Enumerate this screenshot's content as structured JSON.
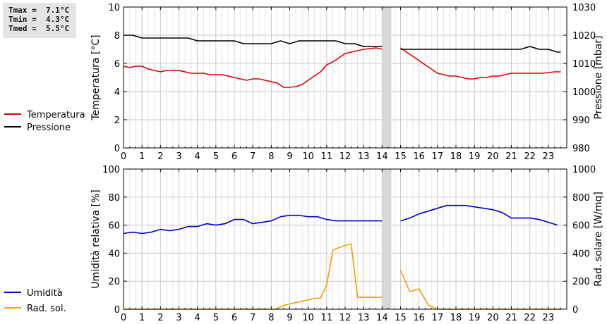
{
  "stats": {
    "tmax": "Tmax =  7.1°C",
    "tmin": "Tmin =  4.3°C",
    "tmed": "Tmed =  5.5°C"
  },
  "chart_data": [
    {
      "type": "line",
      "x_ticks": [
        "0",
        "1",
        "2",
        "3",
        "4",
        "5",
        "6",
        "7",
        "8",
        "9",
        "10",
        "11",
        "12",
        "13",
        "14",
        "15",
        "16",
        "17",
        "18",
        "19",
        "20",
        "21",
        "22",
        "23"
      ],
      "ylabel_left": "Temperatura [°C]",
      "ylabel_right": "Pressione [mbar]",
      "ylim_left": [
        0,
        10
      ],
      "ylim_right": [
        980,
        1030
      ],
      "yticks_left": [
        "0",
        "2",
        "4",
        "6",
        "8",
        "10"
      ],
      "yticks_right": [
        "980",
        "990",
        "1000",
        "1010",
        "1020",
        "1030"
      ],
      "xlim": [
        0,
        24
      ],
      "gap": [
        14.0,
        14.5
      ],
      "grid": true,
      "legend_position": "left",
      "series": [
        {
          "name": "Temperatura",
          "color": "#dd0000",
          "axis": "left",
          "segments": [
            [
              [
                0,
                5.8
              ],
              [
                0.33,
                5.7
              ],
              [
                0.67,
                5.8
              ],
              [
                1,
                5.8
              ],
              [
                1.33,
                5.6
              ],
              [
                1.67,
                5.5
              ],
              [
                2,
                5.4
              ],
              [
                2.33,
                5.5
              ],
              [
                2.67,
                5.5
              ],
              [
                3,
                5.5
              ],
              [
                3.33,
                5.4
              ],
              [
                3.67,
                5.3
              ],
              [
                4,
                5.3
              ],
              [
                4.33,
                5.3
              ],
              [
                4.67,
                5.2
              ],
              [
                5,
                5.2
              ],
              [
                5.33,
                5.2
              ],
              [
                5.67,
                5.1
              ],
              [
                6,
                5.0
              ],
              [
                6.33,
                4.9
              ],
              [
                6.67,
                4.8
              ],
              [
                7,
                4.9
              ],
              [
                7.33,
                4.9
              ],
              [
                7.67,
                4.8
              ],
              [
                8,
                4.7
              ],
              [
                8.33,
                4.6
              ],
              [
                8.67,
                4.3
              ],
              [
                9,
                4.3
              ],
              [
                9.33,
                4.35
              ],
              [
                9.67,
                4.5
              ],
              [
                10,
                4.8
              ],
              [
                10.33,
                5.1
              ],
              [
                10.67,
                5.4
              ],
              [
                11,
                5.9
              ],
              [
                11.33,
                6.1
              ],
              [
                11.67,
                6.4
              ],
              [
                12,
                6.7
              ],
              [
                12.33,
                6.8
              ],
              [
                12.67,
                6.9
              ],
              [
                13,
                7.0
              ],
              [
                13.33,
                7.05
              ],
              [
                13.67,
                7.1
              ],
              [
                14,
                7.0
              ]
            ],
            [
              [
                15,
                7.1
              ],
              [
                15.33,
                6.8
              ],
              [
                15.67,
                6.5
              ],
              [
                16,
                6.2
              ],
              [
                16.33,
                5.9
              ],
              [
                16.67,
                5.6
              ],
              [
                17,
                5.3
              ],
              [
                17.33,
                5.2
              ],
              [
                17.67,
                5.1
              ],
              [
                18,
                5.1
              ],
              [
                18.33,
                5.0
              ],
              [
                18.67,
                4.9
              ],
              [
                19,
                4.9
              ],
              [
                19.33,
                5.0
              ],
              [
                19.67,
                5.0
              ],
              [
                20,
                5.1
              ],
              [
                20.33,
                5.1
              ],
              [
                20.67,
                5.2
              ],
              [
                21,
                5.3
              ],
              [
                21.33,
                5.3
              ],
              [
                21.67,
                5.3
              ],
              [
                22,
                5.3
              ],
              [
                22.33,
                5.3
              ],
              [
                22.67,
                5.3
              ],
              [
                23,
                5.35
              ],
              [
                23.33,
                5.4
              ],
              [
                23.67,
                5.4
              ]
            ]
          ]
        },
        {
          "name": "Pressione",
          "color": "#000000",
          "axis": "right",
          "segments": [
            [
              [
                0,
                1020
              ],
              [
                0.5,
                1020
              ],
              [
                1,
                1019
              ],
              [
                1.5,
                1019
              ],
              [
                2,
                1019
              ],
              [
                2.5,
                1019
              ],
              [
                3,
                1019
              ],
              [
                3.5,
                1019
              ],
              [
                4,
                1018
              ],
              [
                4.5,
                1018
              ],
              [
                5,
                1018
              ],
              [
                5.5,
                1018
              ],
              [
                6,
                1018
              ],
              [
                6.5,
                1017
              ],
              [
                7,
                1017
              ],
              [
                7.5,
                1017
              ],
              [
                8,
                1017
              ],
              [
                8.5,
                1018
              ],
              [
                9,
                1017
              ],
              [
                9.5,
                1018
              ],
              [
                10,
                1018
              ],
              [
                10.5,
                1018
              ],
              [
                11,
                1018
              ],
              [
                11.5,
                1018
              ],
              [
                12,
                1017
              ],
              [
                12.5,
                1017
              ],
              [
                13,
                1016
              ],
              [
                13.5,
                1016
              ],
              [
                14,
                1016
              ]
            ],
            [
              [
                15,
                1015
              ],
              [
                15.5,
                1015
              ],
              [
                16,
                1015
              ],
              [
                16.5,
                1015
              ],
              [
                17,
                1015
              ],
              [
                17.5,
                1015
              ],
              [
                18,
                1015
              ],
              [
                18.5,
                1015
              ],
              [
                19,
                1015
              ],
              [
                19.5,
                1015
              ],
              [
                20,
                1015
              ],
              [
                20.5,
                1015
              ],
              [
                21,
                1015
              ],
              [
                21.5,
                1015
              ],
              [
                22,
                1016
              ],
              [
                22.5,
                1015
              ],
              [
                23,
                1015
              ],
              [
                23.5,
                1014
              ],
              [
                23.67,
                1014
              ]
            ]
          ]
        }
      ]
    },
    {
      "type": "line",
      "x_ticks": [
        "0",
        "1",
        "2",
        "3",
        "4",
        "5",
        "6",
        "7",
        "8",
        "9",
        "10",
        "11",
        "12",
        "13",
        "14",
        "15",
        "16",
        "17",
        "18",
        "19",
        "20",
        "21",
        "22",
        "23"
      ],
      "ylabel_left": "Umidità relativa [%]",
      "ylabel_right": "Rad. solare [W/mq]",
      "ylim_left": [
        0,
        100
      ],
      "ylim_right": [
        0,
        1000
      ],
      "yticks_left": [
        "0",
        "20",
        "40",
        "60",
        "80",
        "100"
      ],
      "yticks_right": [
        "0",
        "200",
        "400",
        "600",
        "800",
        "1000"
      ],
      "xlim": [
        0,
        24
      ],
      "gap": [
        14.0,
        14.5
      ],
      "grid": true,
      "legend_position": "left",
      "series": [
        {
          "name": "Umidità",
          "color": "#0000cc",
          "axis": "left",
          "segments": [
            [
              [
                0,
                54
              ],
              [
                0.5,
                55
              ],
              [
                1,
                54
              ],
              [
                1.5,
                55
              ],
              [
                2,
                57
              ],
              [
                2.5,
                56
              ],
              [
                3,
                57
              ],
              [
                3.5,
                59
              ],
              [
                4,
                59
              ],
              [
                4.5,
                61
              ],
              [
                5,
                60
              ],
              [
                5.5,
                61
              ],
              [
                6,
                64
              ],
              [
                6.5,
                64
              ],
              [
                7,
                61
              ],
              [
                7.5,
                62
              ],
              [
                8,
                63
              ],
              [
                8.5,
                66
              ],
              [
                9,
                67
              ],
              [
                9.5,
                67
              ],
              [
                10,
                66
              ],
              [
                10.5,
                66
              ],
              [
                11,
                64
              ],
              [
                11.5,
                63
              ],
              [
                12,
                63
              ],
              [
                12.5,
                63
              ],
              [
                13,
                63
              ],
              [
                13.5,
                63
              ],
              [
                14,
                63
              ]
            ],
            [
              [
                15,
                63
              ],
              [
                15.5,
                65
              ],
              [
                16,
                68
              ],
              [
                16.5,
                70
              ],
              [
                17,
                72
              ],
              [
                17.5,
                74
              ],
              [
                18,
                74
              ],
              [
                18.5,
                74
              ],
              [
                19,
                73
              ],
              [
                19.5,
                72
              ],
              [
                20,
                71
              ],
              [
                20.5,
                69
              ],
              [
                21,
                65
              ],
              [
                21.5,
                65
              ],
              [
                22,
                65
              ],
              [
                22.5,
                64
              ],
              [
                23,
                62
              ],
              [
                23.5,
                60
              ]
            ]
          ]
        },
        {
          "name": "Rad. sol.",
          "color": "#f0a000",
          "axis": "right",
          "segments": [
            [
              [
                0,
                0
              ],
              [
                1,
                0
              ],
              [
                2,
                0
              ],
              [
                3,
                0
              ],
              [
                4,
                0
              ],
              [
                5,
                0
              ],
              [
                6,
                0
              ],
              [
                7,
                0
              ],
              [
                8,
                0
              ],
              [
                8.25,
                0
              ],
              [
                8.75,
                30
              ],
              [
                9.25,
                45
              ],
              [
                9.75,
                60
              ],
              [
                10.25,
                75
              ],
              [
                10.67,
                80
              ],
              [
                11,
                170
              ],
              [
                11.33,
                420
              ],
              [
                11.67,
                440
              ],
              [
                12,
                455
              ],
              [
                12.33,
                465
              ],
              [
                12.67,
                85
              ],
              [
                13,
                85
              ],
              [
                13.5,
                85
              ],
              [
                14,
                85
              ]
            ],
            [
              [
                15,
                280
              ],
              [
                15.5,
                125
              ],
              [
                16,
                145
              ],
              [
                16.5,
                30
              ],
              [
                17,
                0
              ],
              [
                18,
                0
              ],
              [
                19,
                0
              ],
              [
                20,
                0
              ],
              [
                21,
                0
              ],
              [
                22,
                0
              ],
              [
                23,
                0
              ],
              [
                23.67,
                0
              ]
            ]
          ]
        }
      ]
    }
  ]
}
